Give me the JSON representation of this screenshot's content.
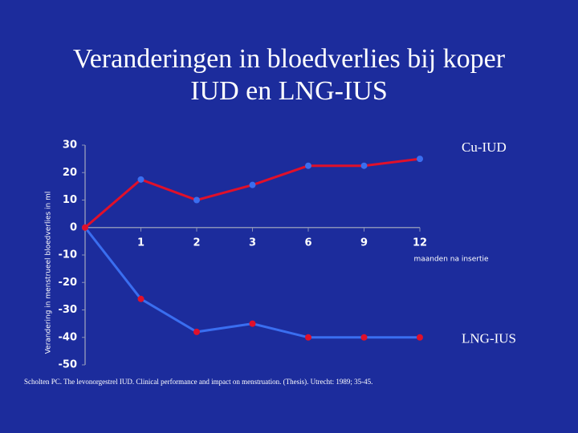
{
  "chart_data": {
    "type": "line",
    "title": [
      "Veranderingen in bloedverlies bij koper",
      "IUD en LNG-IUS"
    ],
    "y_label": "Verandering in menstrueel bloedverlies in ml",
    "x_label": "maanden na insertie",
    "footnote": "Scholten PC. The levonorgestrel IUD. Clinical performance and impact on menstruation. (Thesis). Utrecht: 1989; 35-45.",
    "categories": [
      null,
      "1",
      "2",
      "3",
      "6",
      "9",
      "12"
    ],
    "series": [
      {
        "name": "Cu-IUD",
        "color": "#e0102a",
        "marker_color": "#3a6ef0",
        "values": [
          0,
          17.5,
          10,
          15.5,
          22.5,
          22.5,
          25
        ]
      },
      {
        "name": "LNG-IUS",
        "color": "#3a6ef0",
        "marker_color": "#e0102a",
        "values": [
          0,
          -26,
          -38,
          -35,
          -40,
          -40,
          -40
        ]
      }
    ],
    "ylim": [
      -50,
      30
    ],
    "yticks": [
      -50,
      -40,
      -30,
      -20,
      -10,
      0,
      10,
      20,
      30
    ]
  }
}
